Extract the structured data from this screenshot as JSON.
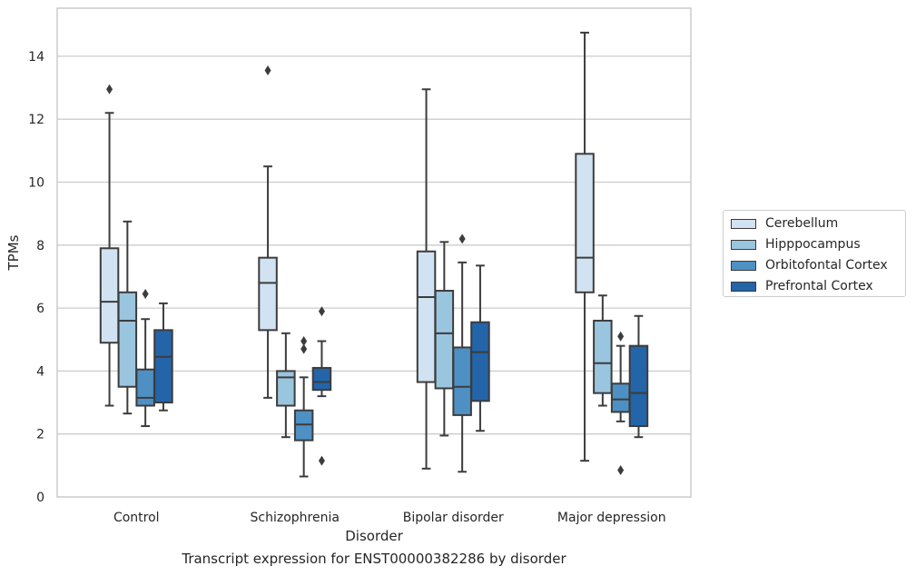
{
  "caption": "Transcript expression for ENST00000382286 by disorder",
  "chart_data": {
    "type": "box",
    "xlabel": "Disorder",
    "ylabel": "TPMs",
    "ylim": [
      0,
      15.5
    ],
    "yticks": [
      0,
      2,
      4,
      6,
      8,
      10,
      12,
      14
    ],
    "categories": [
      "Control",
      "Schizophrenia",
      "Bipolar disorder",
      "Major depression"
    ],
    "grid": "horizontal",
    "legend_position": "right",
    "series": [
      {
        "name": "Cerebellum",
        "color": "#d1e2f2",
        "boxes": [
          {
            "whisker_low": 2.9,
            "q1": 4.9,
            "median": 6.2,
            "q3": 7.9,
            "whisker_high": 12.2,
            "outliers": [
              12.95
            ]
          },
          {
            "whisker_low": 3.15,
            "q1": 5.3,
            "median": 6.8,
            "q3": 7.6,
            "whisker_high": 10.5,
            "outliers": [
              13.55
            ]
          },
          {
            "whisker_low": 0.9,
            "q1": 3.65,
            "median": 6.35,
            "q3": 7.8,
            "whisker_high": 12.95,
            "outliers": []
          },
          {
            "whisker_low": 1.15,
            "q1": 6.5,
            "median": 7.6,
            "q3": 10.9,
            "whisker_high": 14.75,
            "outliers": []
          }
        ]
      },
      {
        "name": "Hipppocampus",
        "color": "#9ac5de",
        "boxes": [
          {
            "whisker_low": 2.65,
            "q1": 3.5,
            "median": 5.6,
            "q3": 6.5,
            "whisker_high": 8.75,
            "outliers": []
          },
          {
            "whisker_low": 1.9,
            "q1": 2.9,
            "median": 3.8,
            "q3": 4.0,
            "whisker_high": 5.2,
            "outliers": []
          },
          {
            "whisker_low": 1.95,
            "q1": 3.45,
            "median": 5.2,
            "q3": 6.55,
            "whisker_high": 8.1,
            "outliers": []
          },
          {
            "whisker_low": 2.9,
            "q1": 3.3,
            "median": 4.25,
            "q3": 5.6,
            "whisker_high": 6.4,
            "outliers": []
          }
        ]
      },
      {
        "name": "Orbitofontal Cortex",
        "color": "#4e90c4",
        "boxes": [
          {
            "whisker_low": 2.25,
            "q1": 2.9,
            "median": 3.15,
            "q3": 4.05,
            "whisker_high": 5.65,
            "outliers": [
              6.45
            ]
          },
          {
            "whisker_low": 0.65,
            "q1": 1.8,
            "median": 2.3,
            "q3": 2.75,
            "whisker_high": 3.8,
            "outliers": [
              4.7,
              4.95
            ]
          },
          {
            "whisker_low": 0.8,
            "q1": 2.6,
            "median": 3.5,
            "q3": 4.75,
            "whisker_high": 7.45,
            "outliers": [
              8.2
            ]
          },
          {
            "whisker_low": 2.4,
            "q1": 2.7,
            "median": 3.1,
            "q3": 3.6,
            "whisker_high": 4.8,
            "outliers": [
              5.1,
              0.85
            ]
          }
        ]
      },
      {
        "name": "Prefrontal Cortex",
        "color": "#2464a9",
        "boxes": [
          {
            "whisker_low": 2.75,
            "q1": 3.0,
            "median": 4.45,
            "q3": 5.3,
            "whisker_high": 6.15,
            "outliers": []
          },
          {
            "whisker_low": 3.2,
            "q1": 3.4,
            "median": 3.65,
            "q3": 4.1,
            "whisker_high": 4.95,
            "outliers": [
              5.9,
              1.15
            ]
          },
          {
            "whisker_low": 2.1,
            "q1": 3.05,
            "median": 4.6,
            "q3": 5.55,
            "whisker_high": 7.35,
            "outliers": []
          },
          {
            "whisker_low": 1.9,
            "q1": 2.25,
            "median": 3.3,
            "q3": 4.8,
            "whisker_high": 5.75,
            "outliers": []
          }
        ]
      }
    ]
  }
}
